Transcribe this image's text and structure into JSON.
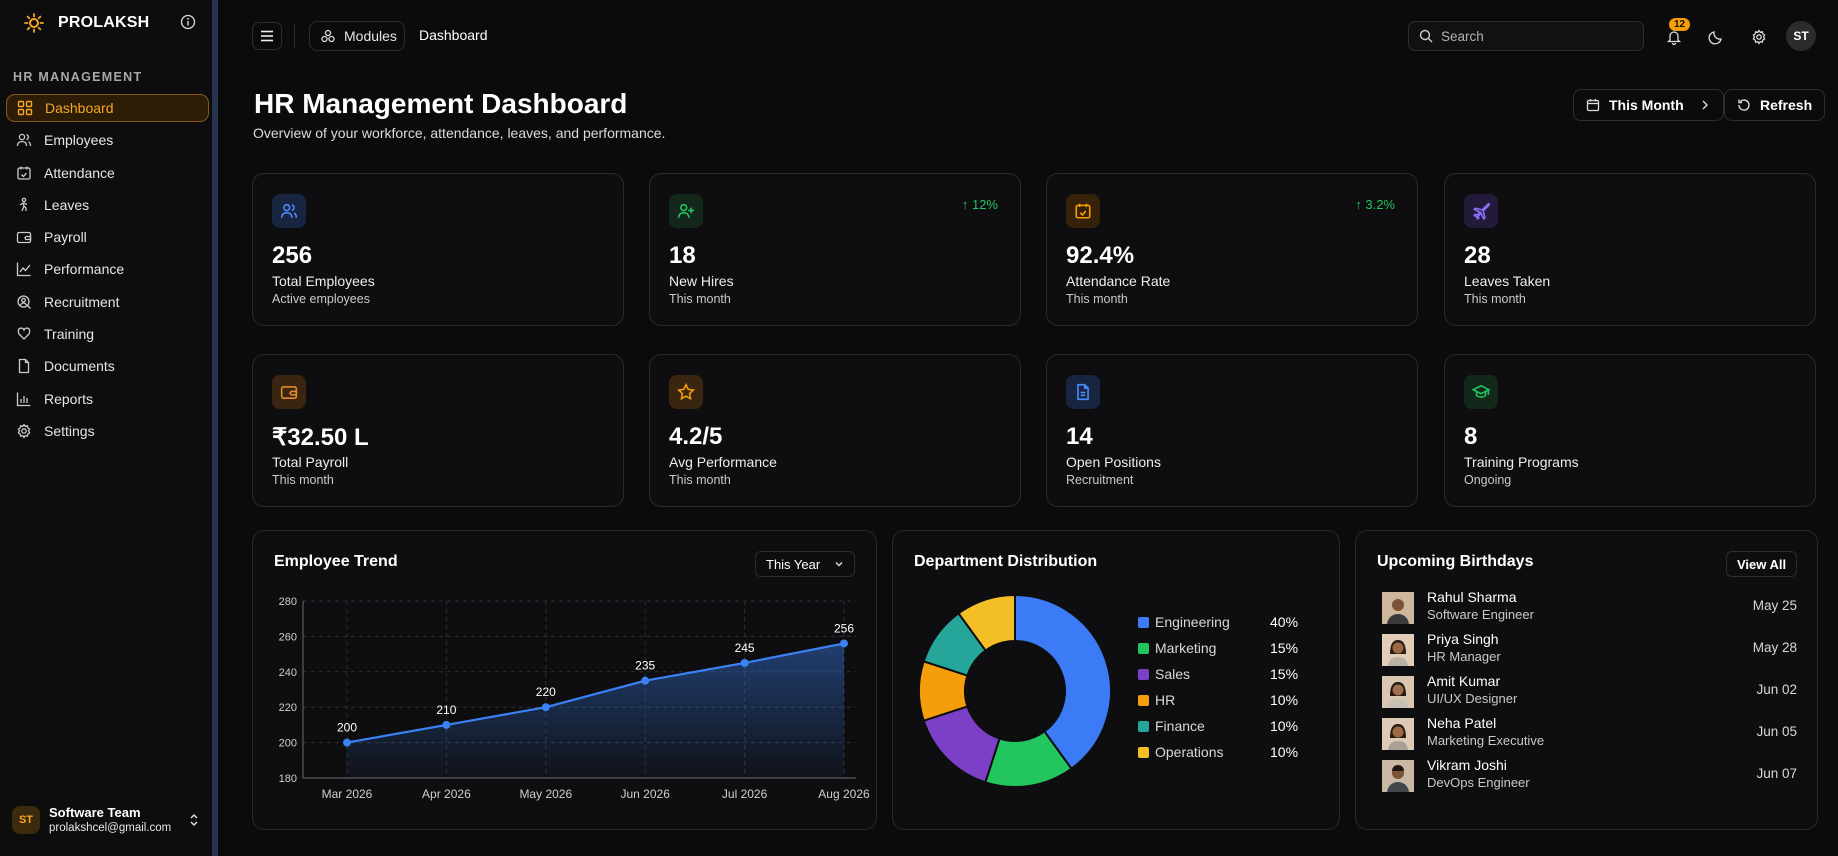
{
  "brand": {
    "name": "PROLAKSH"
  },
  "sidebar": {
    "section": "HR MANAGEMENT",
    "items": [
      {
        "label": "Dashboard",
        "icon": "dashboard-icon",
        "active": true
      },
      {
        "label": "Employees",
        "icon": "users-icon"
      },
      {
        "label": "Attendance",
        "icon": "calendar-check-icon"
      },
      {
        "label": "Leaves",
        "icon": "person-walking-icon"
      },
      {
        "label": "Payroll",
        "icon": "wallet-icon"
      },
      {
        "label": "Performance",
        "icon": "chart-line-icon"
      },
      {
        "label": "Recruitment",
        "icon": "user-search-icon"
      },
      {
        "label": "Training",
        "icon": "book-icon"
      },
      {
        "label": "Documents",
        "icon": "document-icon"
      },
      {
        "label": "Reports",
        "icon": "bar-chart-icon"
      },
      {
        "label": "Settings",
        "icon": "gear-icon"
      }
    ],
    "user": {
      "initials": "ST",
      "name": "Software Team",
      "email": "prolakshcel@gmail.com"
    }
  },
  "topbar": {
    "modules_label": "Modules",
    "breadcrumb": "Dashboard",
    "search_placeholder": "Search",
    "notification_count": "12",
    "avatar_initials": "ST"
  },
  "header": {
    "title": "HR Management Dashboard",
    "subtitle": "Overview of your workforce, attendance, leaves, and performance.",
    "period_label": "This Month",
    "refresh_label": "Refresh"
  },
  "stats": [
    {
      "value": "256",
      "label": "Total Employees",
      "sub": "Active employees",
      "trend": "",
      "icon": "users-icon",
      "color": "#3b82f6"
    },
    {
      "value": "18",
      "label": "New Hires",
      "sub": "This month",
      "trend": "↑ 12%",
      "icon": "user-plus-icon",
      "color": "#22c55e"
    },
    {
      "value": "92.4%",
      "label": "Attendance Rate",
      "sub": "This month",
      "trend": "↑ 3.2%",
      "icon": "calendar-check-icon",
      "color": "#f59e0b"
    },
    {
      "value": "28",
      "label": "Leaves Taken",
      "sub": "This month",
      "trend": "",
      "icon": "plane-icon",
      "color": "#8b5cf6"
    },
    {
      "value": "₹32.50 L",
      "label": "Total Payroll",
      "sub": "This month",
      "trend": "",
      "icon": "wallet-icon",
      "color": "#d97706"
    },
    {
      "value": "4.2/5",
      "label": "Avg Performance",
      "sub": "This month",
      "trend": "",
      "icon": "star-icon",
      "color": "#f59e0b"
    },
    {
      "value": "14",
      "label": "Open Positions",
      "sub": "Recruitment",
      "trend": "",
      "icon": "document-icon",
      "color": "#3b82f6"
    },
    {
      "value": "8",
      "label": "Training Programs",
      "sub": "Ongoing",
      "trend": "",
      "icon": "graduation-cap-icon",
      "color": "#22c55e"
    }
  ],
  "trend_panel": {
    "title": "Employee Trend",
    "filter": "This Year"
  },
  "dept_panel": {
    "title": "Department Distribution"
  },
  "birthdays": {
    "title": "Upcoming Birthdays",
    "view_all": "View All",
    "items": [
      {
        "name": "Rahul Sharma",
        "role": "Software Engineer",
        "date": "May 25"
      },
      {
        "name": "Priya Singh",
        "role": "HR Manager",
        "date": "May 28"
      },
      {
        "name": "Amit Kumar",
        "role": "UI/UX Designer",
        "date": "Jun 02"
      },
      {
        "name": "Neha Patel",
        "role": "Marketing Executive",
        "date": "Jun 05"
      },
      {
        "name": "Vikram Joshi",
        "role": "DevOps Engineer",
        "date": "Jun 07"
      }
    ]
  },
  "chart_data": [
    {
      "type": "area",
      "title": "Employee Trend",
      "categories": [
        "Mar 2026",
        "Apr 2026",
        "May 2026",
        "Jun 2026",
        "Jul 2026",
        "Aug 2026"
      ],
      "values": [
        200,
        210,
        220,
        235,
        245,
        256
      ],
      "ylim": [
        180,
        280
      ],
      "yticks": [
        180,
        200,
        220,
        240,
        260,
        280
      ],
      "grid": true,
      "color": "#3b82f6"
    },
    {
      "type": "pie",
      "title": "Department Distribution",
      "labels": [
        "Engineering",
        "Marketing",
        "Sales",
        "HR",
        "Finance",
        "Operations"
      ],
      "values": [
        40,
        15,
        15,
        10,
        10,
        10
      ],
      "pct_labels": [
        "40%",
        "15%",
        "15%",
        "10%",
        "10%",
        "10%"
      ],
      "colors": [
        "#3b7bf5",
        "#22c55e",
        "#7c3fc8",
        "#f59e0b",
        "#26a69a",
        "#f4bf26"
      ],
      "legend": "right"
    }
  ]
}
